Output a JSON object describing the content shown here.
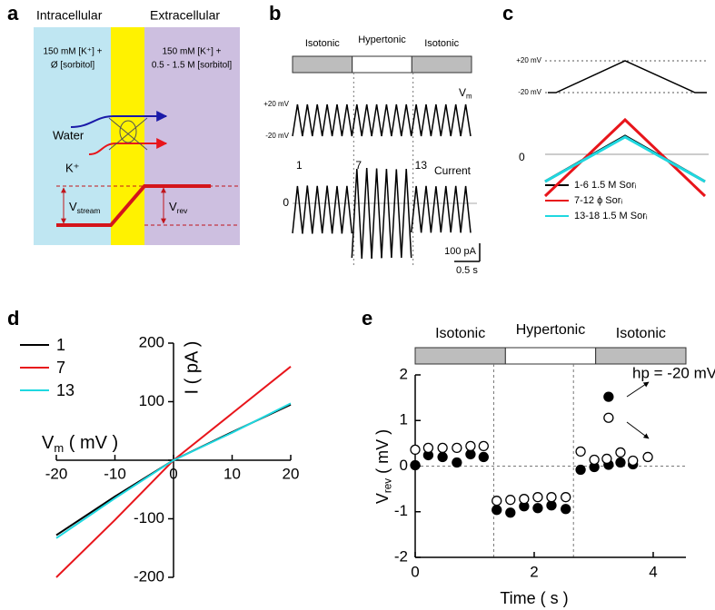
{
  "chart_data": [
    {
      "type": "diagram",
      "label": "a",
      "regions": [
        "Intracellular",
        "Extracellular"
      ],
      "solutions": [
        [
          "150 mM [K⁺] +",
          "Ø [sorbitol]"
        ],
        [
          "150 mM [K⁺] +",
          "0.5 - 1.5 M [sorbitol]"
        ]
      ],
      "fluxes": [
        "Water",
        "K⁺"
      ],
      "potentials": [
        {
          "base": "V",
          "sub": "stream"
        },
        {
          "base": "V",
          "sub": "rev"
        }
      ]
    },
    {
      "type": "traces",
      "label": "b",
      "segments": [
        "Isotonic",
        "Hypertonic",
        "Isotonic"
      ],
      "vm_label": {
        "base": "V",
        "sub": "m"
      },
      "vm_ticks": [
        {
          "value": 20,
          "label": "+20 mV"
        },
        {
          "value": -20,
          "label": "-20 mV"
        }
      ],
      "sweep_labels": [
        1,
        7,
        13
      ],
      "current_label": "Current",
      "current_ticks": [
        0
      ],
      "peaks": [
        95,
        98,
        96,
        97,
        95,
        96,
        190,
        195,
        192,
        190,
        188,
        190,
        95,
        96,
        94,
        95,
        96,
        95
      ],
      "troughs": [
        -165,
        -168,
        -166,
        -165,
        -167,
        -166,
        -300,
        -305,
        -302,
        -300,
        -298,
        -300,
        -160,
        -162,
        -160,
        -161,
        -160,
        -162
      ],
      "scale_bars": [
        {
          "value": 100,
          "label": "100 pA"
        },
        {
          "value": 0.5,
          "label": "0.5 s"
        }
      ]
    },
    {
      "type": "traces-overlay",
      "label": "c",
      "vm_ticks": [
        {
          "value": 20,
          "label": "+20 mV"
        },
        {
          "value": -20,
          "label": "-20 mV"
        }
      ],
      "current_ticks": [
        0
      ],
      "series": [
        {
          "name": "1-6 1.5 M Sorᵢ",
          "color": "#000000",
          "values": [
            -150,
            100,
            -150
          ]
        },
        {
          "name": "7-12 ϕ Sorᵢ",
          "color": "#e8151b",
          "values": [
            -230,
            190,
            -230
          ]
        },
        {
          "name": "13-18 1.5 M Sorᵢ",
          "color": "#1fd8e0",
          "values": [
            -150,
            95,
            -150
          ]
        }
      ]
    },
    {
      "type": "line",
      "label": "d",
      "x_label": {
        "base": "V",
        "sub": "m",
        "unit": "( mV )"
      },
      "y_label": "I ( pA )",
      "x": [
        -20,
        -10,
        0,
        10,
        20
      ],
      "xlim": [
        -20,
        20
      ],
      "ylim": [
        -200,
        200
      ],
      "xticks": [
        -20,
        -10,
        0,
        10,
        20
      ],
      "yticks": [
        -200,
        -100,
        0,
        100,
        200
      ],
      "series": [
        {
          "name": "1",
          "color": "#000000",
          "values": [
            -128,
            -62,
            0,
            48,
            95
          ]
        },
        {
          "name": "7",
          "color": "#e8151b",
          "values": [
            -200,
            -102,
            0,
            80,
            160
          ]
        },
        {
          "name": "13",
          "color": "#1fd8e0",
          "values": [
            -133,
            -65,
            0,
            47,
            97
          ]
        }
      ]
    },
    {
      "type": "scatter",
      "label": "e",
      "segments": [
        "Isotonic",
        "Hypertonic",
        "Isotonic"
      ],
      "dividers": [
        1.32,
        2.66
      ],
      "x_label": "Time ( s )",
      "y_label": {
        "base": "V",
        "sub": "rev",
        "unit": "( mV )"
      },
      "annotation": "hp = -20 mV",
      "xlim": [
        0,
        4.55
      ],
      "ylim": [
        -2,
        2
      ],
      "xticks": [
        0,
        2,
        4
      ],
      "yticks": [
        -2,
        -1,
        0,
        1,
        2
      ],
      "series": [
        {
          "marker": "filled",
          "color": "#000000",
          "x": [
            0,
            0.22,
            0.46,
            0.7,
            0.93,
            1.15,
            1.37,
            1.6,
            1.83,
            2.06,
            2.29,
            2.53,
            2.78,
            3.01,
            3.25,
            3.25,
            3.45,
            3.66
          ],
          "values": [
            0.02,
            0.24,
            0.2,
            0.08,
            0.26,
            0.2,
            -0.96,
            -1.02,
            -0.88,
            -0.92,
            -0.86,
            -0.94,
            -0.08,
            -0.02,
            0.03,
            1.52,
            0.08,
            0.04
          ]
        },
        {
          "marker": "open",
          "color": "#000000",
          "x": [
            0,
            0.22,
            0.46,
            0.7,
            0.93,
            1.15,
            1.37,
            1.6,
            1.83,
            2.06,
            2.29,
            2.53,
            2.78,
            3.01,
            3.22,
            3.25,
            3.45,
            3.66,
            3.91
          ],
          "values": [
            0.36,
            0.4,
            0.4,
            0.4,
            0.44,
            0.44,
            -0.76,
            -0.74,
            -0.72,
            -0.68,
            -0.68,
            -0.68,
            0.32,
            0.14,
            0.16,
            1.06,
            0.3,
            0.12,
            0.2
          ]
        }
      ]
    }
  ]
}
